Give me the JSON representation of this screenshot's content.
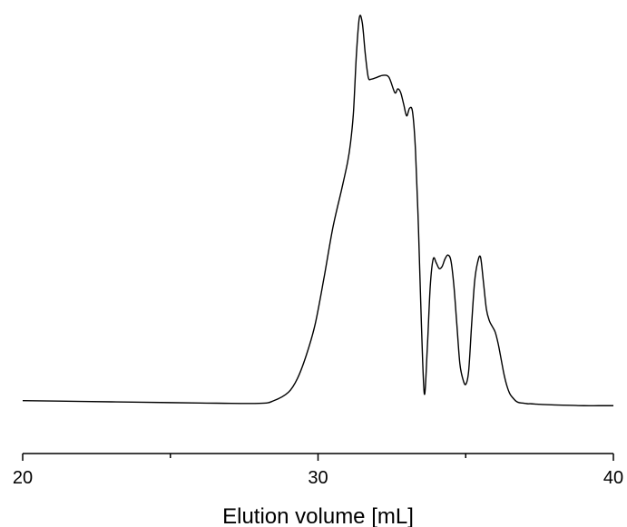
{
  "chart_data": {
    "type": "line",
    "title": "",
    "xlabel": "Elution volume [mL]",
    "ylabel": "",
    "xlim": [
      20,
      40
    ],
    "x_ticks_major": [
      20,
      30,
      40
    ],
    "x_tick_labels": [
      "20",
      "30",
      "40"
    ],
    "x_ticks_minor": [
      25,
      35
    ],
    "y_axis_shown": false,
    "grid": false,
    "legend": "none",
    "ylim": [
      0,
      100
    ],
    "series": [
      {
        "color": "#000000",
        "x": [
          20.0,
          22.0,
          24.0,
          26.0,
          28.0,
          28.5,
          29.0,
          29.3,
          29.6,
          29.9,
          30.2,
          30.5,
          30.8,
          31.0,
          31.1,
          31.2,
          31.3,
          31.4,
          31.5,
          31.6,
          31.7,
          31.8,
          32.0,
          32.2,
          32.4,
          32.6,
          32.7,
          32.8,
          32.9,
          33.0,
          33.1,
          33.2,
          33.3,
          33.4,
          33.5,
          33.6,
          33.7,
          33.8,
          33.9,
          34.0,
          34.1,
          34.2,
          34.3,
          34.4,
          34.5,
          34.6,
          34.7,
          34.8,
          34.9,
          35.0,
          35.1,
          35.2,
          35.3,
          35.4,
          35.5,
          35.6,
          35.7,
          35.8,
          35.9,
          36.0,
          36.1,
          36.2,
          36.3,
          36.4,
          36.5,
          36.6,
          36.7,
          36.8,
          36.9,
          37.0,
          37.1,
          37.2,
          37.4,
          37.6,
          38.0,
          38.5,
          39.0,
          39.5,
          40.0
        ],
        "y": [
          0.3,
          0.1,
          -0.1,
          -0.3,
          -0.4,
          0.3,
          2.5,
          6.0,
          12.0,
          20.0,
          32.0,
          45.0,
          55.0,
          62.0,
          67.0,
          75.0,
          90.0,
          99.5,
          98.0,
          90.0,
          84.0,
          83.5,
          84.0,
          84.5,
          84.0,
          80.0,
          81.0,
          80.0,
          77.0,
          74.0,
          76.0,
          75.0,
          65.0,
          45.0,
          20.0,
          2.0,
          14.0,
          30.0,
          37.0,
          36.0,
          34.5,
          35.0,
          37.0,
          38.0,
          36.5,
          30.0,
          20.0,
          10.0,
          6.0,
          4.5,
          8.0,
          20.0,
          31.0,
          36.0,
          37.5,
          31.0,
          24.0,
          21.0,
          19.5,
          18.0,
          15.0,
          11.0,
          7.0,
          4.0,
          2.0,
          1.0,
          0.2,
          -0.2,
          -0.3,
          -0.4,
          -0.5,
          -0.5,
          -0.6,
          -0.7,
          -0.8,
          -0.9,
          -1.0,
          -1.0,
          -1.0
        ]
      }
    ]
  }
}
